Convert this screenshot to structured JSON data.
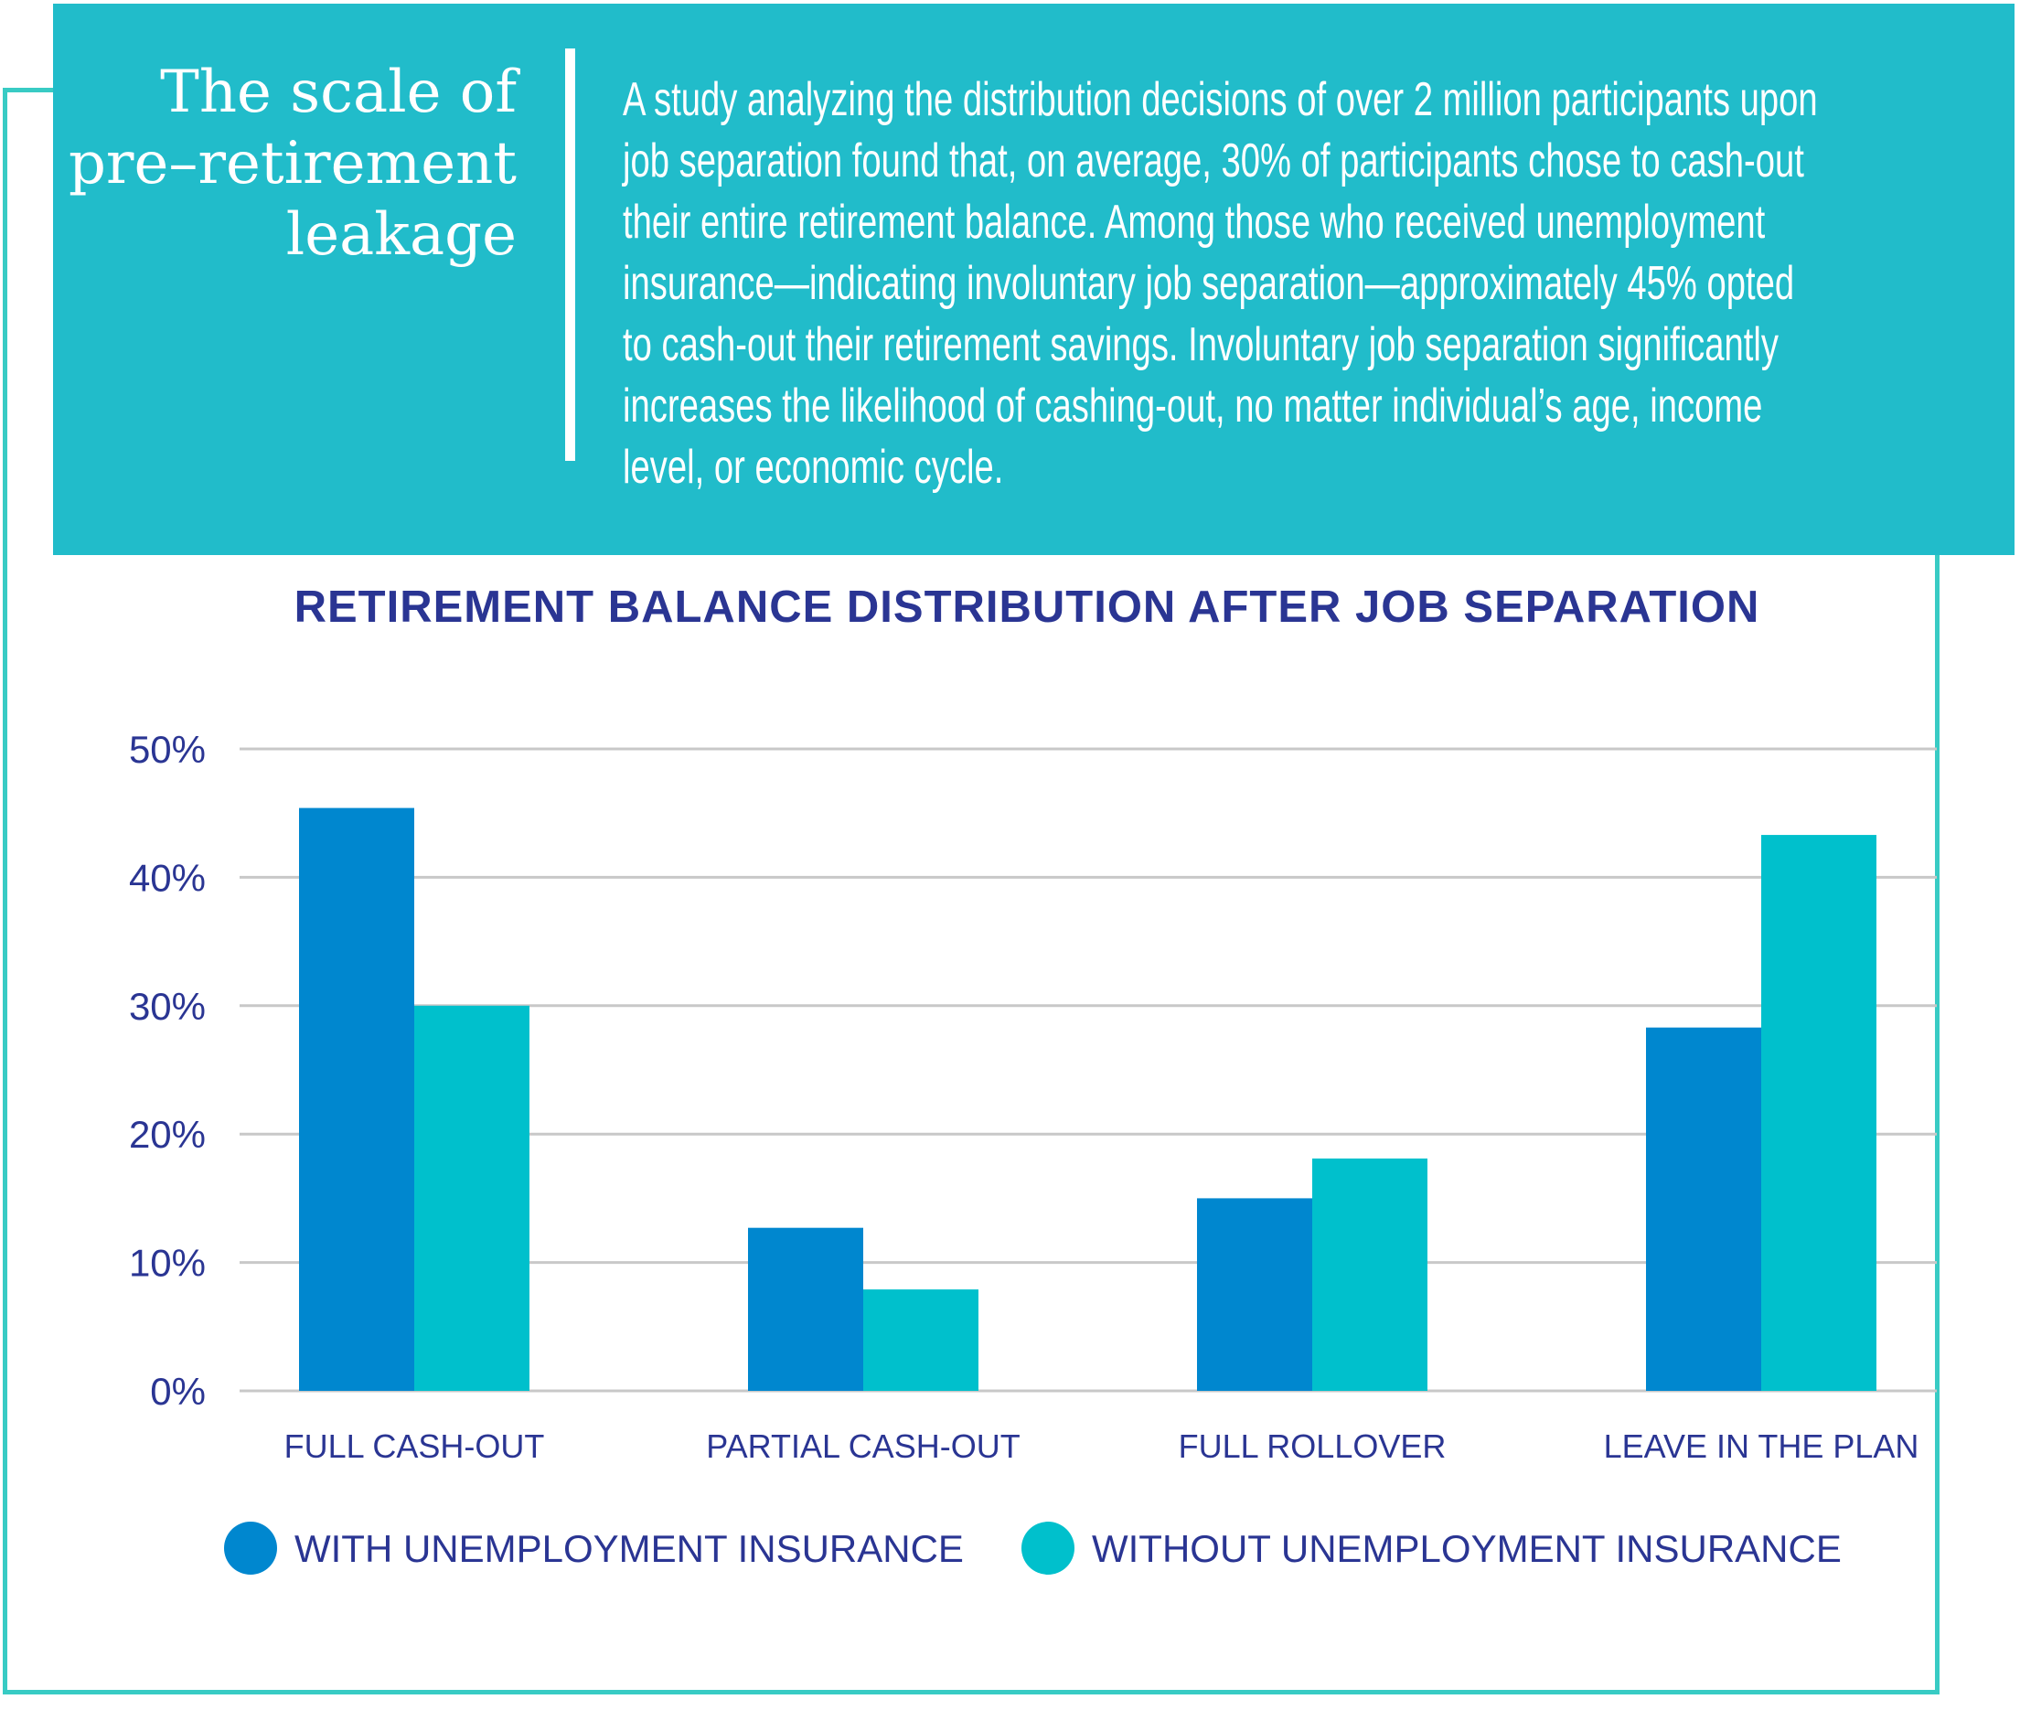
{
  "header": {
    "heading_lines": [
      "The scale of",
      "pre–retirement",
      "leakage"
    ],
    "body_lines": [
      "A study analyzing the distribution decisions of over 2 million participants upon",
      "job separation found that, on average, 30% of participants chose to cash-out",
      "their entire retirement balance. Among those who received unemployment",
      "insurance—indicating involuntary job separation—approximately 45% opted",
      "to cash-out their retirement savings. Involuntary job separation significantly",
      "increases the likelihood of cashing-out, no matter individual’s age, income",
      "level, or economic cycle."
    ]
  },
  "colors": {
    "header_bg": "#21bcca",
    "outline": "#38cbc4",
    "title_text": "#2a3593",
    "series_with": "#0087cf",
    "series_without": "#00c0cc",
    "grid": "#c8c8c8"
  },
  "chart_data": {
    "type": "bar",
    "title": "RETIREMENT BALANCE DISTRIBUTION AFTER JOB SEPARATION",
    "xlabel": "",
    "ylabel": "",
    "categories": [
      "FULL CASH-OUT",
      "PARTIAL CASH-OUT",
      "FULL ROLLOVER",
      "LEAVE IN THE PLAN"
    ],
    "series": [
      {
        "name": "WITH UNEMPLOYMENT INSURANCE",
        "values": [
          45.4,
          12.7,
          15.0,
          28.3
        ]
      },
      {
        "name": "WITHOUT UNEMPLOYMENT INSURANCE",
        "values": [
          30.0,
          7.9,
          18.1,
          43.3
        ]
      }
    ],
    "ylim": [
      0,
      50
    ],
    "yticks": [
      0,
      10,
      20,
      30,
      40,
      50
    ],
    "ytick_labels": [
      "0%",
      "10%",
      "20%",
      "30%",
      "40%",
      "50%"
    ],
    "grid": true,
    "legend_position": "bottom"
  }
}
